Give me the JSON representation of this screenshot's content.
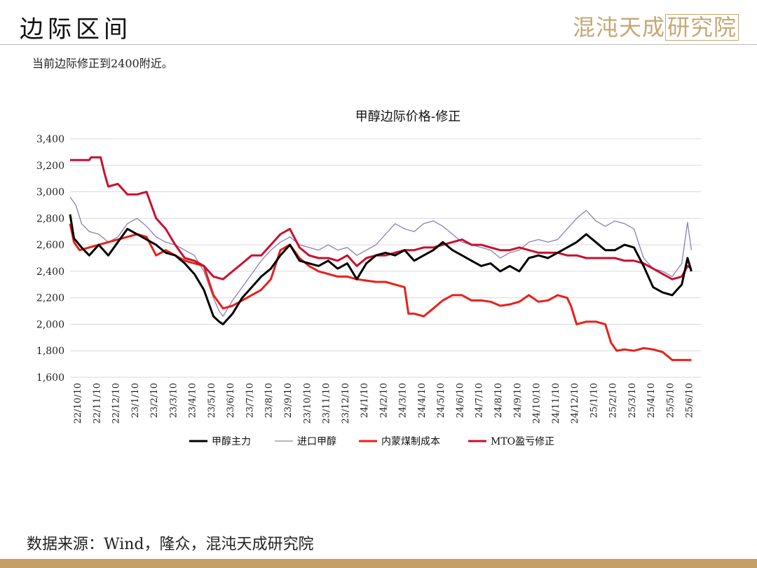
{
  "header": {
    "title": "边际区间",
    "subtitle": "当前边际修正到2400附近。",
    "logo_main": "混沌天成",
    "logo_box": "研究院",
    "source": "数据来源：Wind，隆众，混沌天成研究院"
  },
  "colors": {
    "accent_gold": "#c4a067",
    "series_black": "#000000",
    "series_purple": "#8a7fb5",
    "series_red": "#e8201a",
    "series_darkred": "#c8102e"
  },
  "chart_data": {
    "type": "line",
    "title": "甲醇边际价格-修正",
    "xlabel": "",
    "ylabel": "",
    "ylim": [
      1600,
      3400
    ],
    "yticks": [
      1600,
      1800,
      2000,
      2200,
      2400,
      2600,
      2800,
      3000,
      3200,
      3400
    ],
    "ytick_labels": [
      "1,600",
      "1,800",
      "2,000",
      "2,200",
      "2,400",
      "2,600",
      "2,800",
      "3,000",
      "3,200",
      "3,400"
    ],
    "grid": "horizontal",
    "legend_position": "bottom",
    "xtick_labels": [
      "22/10/10",
      "22/11/10",
      "22/12/10",
      "23/1/10",
      "23/2/10",
      "23/3/10",
      "23/4/10",
      "23/5/10",
      "23/6/10",
      "23/7/10",
      "23/8/10",
      "23/9/10",
      "23/10/10",
      "23/11/10",
      "23/12/10",
      "24/1/10",
      "24/2/10",
      "24/3/10",
      "24/4/10",
      "24/5/10",
      "24/6/10",
      "24/7/10",
      "24/8/10",
      "24/9/10",
      "24/10/10",
      "24/11/10",
      "24/12/10",
      "25/1/10",
      "25/2/10",
      "25/3/10",
      "25/4/10",
      "25/5/10",
      "25/6/10"
    ],
    "x_unit": "month index from 22/10/10",
    "series": [
      {
        "name": "甲醇主力",
        "style": "thick",
        "points": [
          [
            0,
            2830
          ],
          [
            0.2,
            2650
          ],
          [
            0.6,
            2580
          ],
          [
            1,
            2520
          ],
          [
            1.5,
            2600
          ],
          [
            2,
            2520
          ],
          [
            2.5,
            2620
          ],
          [
            3,
            2720
          ],
          [
            3.5,
            2680
          ],
          [
            4,
            2640
          ],
          [
            4.5,
            2600
          ],
          [
            5,
            2540
          ],
          [
            5.5,
            2520
          ],
          [
            6,
            2460
          ],
          [
            6.5,
            2380
          ],
          [
            7,
            2260
          ],
          [
            7.5,
            2060
          ],
          [
            7.8,
            2020
          ],
          [
            8,
            2000
          ],
          [
            8.5,
            2080
          ],
          [
            9,
            2200
          ],
          [
            9.5,
            2280
          ],
          [
            10,
            2360
          ],
          [
            10.5,
            2420
          ],
          [
            11,
            2520
          ],
          [
            11.5,
            2600
          ],
          [
            12,
            2480
          ],
          [
            12.5,
            2460
          ],
          [
            13,
            2440
          ],
          [
            13.5,
            2480
          ],
          [
            14,
            2420
          ],
          [
            14.5,
            2460
          ],
          [
            15,
            2340
          ],
          [
            15.5,
            2460
          ],
          [
            16,
            2520
          ],
          [
            16.5,
            2540
          ],
          [
            17,
            2520
          ],
          [
            17.5,
            2560
          ],
          [
            18,
            2480
          ],
          [
            18.5,
            2520
          ],
          [
            19,
            2560
          ],
          [
            19.5,
            2620
          ],
          [
            20,
            2560
          ],
          [
            20.5,
            2520
          ],
          [
            21,
            2480
          ],
          [
            21.5,
            2440
          ],
          [
            22,
            2460
          ],
          [
            22.5,
            2400
          ],
          [
            23,
            2440
          ],
          [
            23.5,
            2400
          ],
          [
            24,
            2500
          ],
          [
            24.5,
            2520
          ],
          [
            25,
            2500
          ],
          [
            25.5,
            2540
          ],
          [
            26,
            2580
          ],
          [
            26.5,
            2620
          ],
          [
            27,
            2680
          ],
          [
            27.5,
            2620
          ],
          [
            28,
            2560
          ],
          [
            28.5,
            2560
          ],
          [
            29,
            2600
          ],
          [
            29.5,
            2580
          ],
          [
            30,
            2440
          ],
          [
            30.5,
            2280
          ],
          [
            31,
            2240
          ],
          [
            31.5,
            2220
          ],
          [
            32,
            2300
          ],
          [
            32.3,
            2500
          ],
          [
            32.5,
            2400
          ]
        ]
      },
      {
        "name": "进口甲醇",
        "style": "thin",
        "points": [
          [
            0,
            2960
          ],
          [
            0.3,
            2900
          ],
          [
            0.6,
            2760
          ],
          [
            1,
            2700
          ],
          [
            1.5,
            2680
          ],
          [
            2,
            2620
          ],
          [
            2.5,
            2660
          ],
          [
            3,
            2760
          ],
          [
            3.5,
            2800
          ],
          [
            4,
            2740
          ],
          [
            4.5,
            2660
          ],
          [
            5,
            2620
          ],
          [
            5.5,
            2600
          ],
          [
            6,
            2560
          ],
          [
            6.5,
            2520
          ],
          [
            7,
            2400
          ],
          [
            7.5,
            2200
          ],
          [
            7.8,
            2100
          ],
          [
            8,
            2060
          ],
          [
            8.5,
            2180
          ],
          [
            9,
            2280
          ],
          [
            9.5,
            2380
          ],
          [
            10,
            2480
          ],
          [
            10.5,
            2560
          ],
          [
            11,
            2620
          ],
          [
            11.5,
            2660
          ],
          [
            12,
            2600
          ],
          [
            12.5,
            2580
          ],
          [
            13,
            2560
          ],
          [
            13.5,
            2600
          ],
          [
            14,
            2560
          ],
          [
            14.5,
            2580
          ],
          [
            15,
            2520
          ],
          [
            15.5,
            2560
          ],
          [
            16,
            2600
          ],
          [
            16.5,
            2680
          ],
          [
            17,
            2760
          ],
          [
            17.5,
            2720
          ],
          [
            18,
            2700
          ],
          [
            18.5,
            2760
          ],
          [
            19,
            2780
          ],
          [
            19.5,
            2740
          ],
          [
            20,
            2680
          ],
          [
            20.5,
            2620
          ],
          [
            21,
            2600
          ],
          [
            21.5,
            2580
          ],
          [
            22,
            2560
          ],
          [
            22.5,
            2500
          ],
          [
            23,
            2540
          ],
          [
            23.5,
            2560
          ],
          [
            24,
            2620
          ],
          [
            24.5,
            2640
          ],
          [
            25,
            2620
          ],
          [
            25.5,
            2640
          ],
          [
            26,
            2720
          ],
          [
            26.5,
            2800
          ],
          [
            27,
            2860
          ],
          [
            27.5,
            2780
          ],
          [
            28,
            2740
          ],
          [
            28.5,
            2780
          ],
          [
            29,
            2760
          ],
          [
            29.5,
            2720
          ],
          [
            30,
            2500
          ],
          [
            30.5,
            2420
          ],
          [
            31,
            2400
          ],
          [
            31.5,
            2360
          ],
          [
            32,
            2460
          ],
          [
            32.3,
            2770
          ],
          [
            32.5,
            2560
          ]
        ]
      },
      {
        "name": "内蒙煤制成本",
        "style": "thick",
        "points": [
          [
            0,
            2760
          ],
          [
            0.2,
            2620
          ],
          [
            0.5,
            2560
          ],
          [
            1,
            2580
          ],
          [
            1.5,
            2600
          ],
          [
            2,
            2620
          ],
          [
            2.5,
            2640
          ],
          [
            3,
            2660
          ],
          [
            3.5,
            2680
          ],
          [
            4,
            2660
          ],
          [
            4.5,
            2520
          ],
          [
            5,
            2560
          ],
          [
            5.5,
            2520
          ],
          [
            6,
            2480
          ],
          [
            6.5,
            2460
          ],
          [
            7,
            2440
          ],
          [
            7.5,
            2220
          ],
          [
            7.8,
            2160
          ],
          [
            8,
            2120
          ],
          [
            8.5,
            2140
          ],
          [
            9,
            2180
          ],
          [
            9.5,
            2220
          ],
          [
            10,
            2260
          ],
          [
            10.5,
            2340
          ],
          [
            11,
            2560
          ],
          [
            11.5,
            2600
          ],
          [
            12,
            2500
          ],
          [
            12.5,
            2440
          ],
          [
            13,
            2400
          ],
          [
            13.5,
            2380
          ],
          [
            14,
            2360
          ],
          [
            14.5,
            2360
          ],
          [
            15,
            2340
          ],
          [
            15.5,
            2330
          ],
          [
            16,
            2320
          ],
          [
            16.5,
            2320
          ],
          [
            17,
            2300
          ],
          [
            17.5,
            2280
          ],
          [
            17.7,
            2080
          ],
          [
            18,
            2080
          ],
          [
            18.5,
            2060
          ],
          [
            19,
            2120
          ],
          [
            19.5,
            2180
          ],
          [
            20,
            2220
          ],
          [
            20.5,
            2220
          ],
          [
            21,
            2180
          ],
          [
            21.5,
            2180
          ],
          [
            22,
            2170
          ],
          [
            22.5,
            2140
          ],
          [
            23,
            2150
          ],
          [
            23.5,
            2170
          ],
          [
            24,
            2220
          ],
          [
            24.5,
            2170
          ],
          [
            25,
            2180
          ],
          [
            25.5,
            2220
          ],
          [
            26,
            2200
          ],
          [
            26.2,
            2140
          ],
          [
            26.5,
            2000
          ],
          [
            27,
            2020
          ],
          [
            27.5,
            2020
          ],
          [
            28,
            2000
          ],
          [
            28.3,
            1860
          ],
          [
            28.6,
            1800
          ],
          [
            29,
            1810
          ],
          [
            29.5,
            1800
          ],
          [
            30,
            1820
          ],
          [
            30.5,
            1810
          ],
          [
            31,
            1790
          ],
          [
            31.5,
            1730
          ],
          [
            32,
            1730
          ],
          [
            32.5,
            1730
          ]
        ]
      },
      {
        "name": "MTO盈亏修正",
        "style": "thick",
        "points": [
          [
            0,
            3240
          ],
          [
            0.5,
            3240
          ],
          [
            1,
            3240
          ],
          [
            1.1,
            3260
          ],
          [
            1.6,
            3260
          ],
          [
            1.8,
            3140
          ],
          [
            2,
            3040
          ],
          [
            2.5,
            3060
          ],
          [
            3,
            2980
          ],
          [
            3.5,
            2980
          ],
          [
            4,
            3000
          ],
          [
            4.5,
            2800
          ],
          [
            5,
            2720
          ],
          [
            5.5,
            2600
          ],
          [
            6,
            2500
          ],
          [
            6.5,
            2480
          ],
          [
            7,
            2440
          ],
          [
            7.5,
            2360
          ],
          [
            8,
            2340
          ],
          [
            8.5,
            2400
          ],
          [
            9,
            2460
          ],
          [
            9.5,
            2520
          ],
          [
            10,
            2520
          ],
          [
            10.5,
            2600
          ],
          [
            11,
            2680
          ],
          [
            11.5,
            2720
          ],
          [
            12,
            2580
          ],
          [
            12.5,
            2520
          ],
          [
            13,
            2500
          ],
          [
            13.5,
            2500
          ],
          [
            14,
            2480
          ],
          [
            14.5,
            2520
          ],
          [
            15,
            2440
          ],
          [
            15.5,
            2500
          ],
          [
            16,
            2520
          ],
          [
            16.5,
            2520
          ],
          [
            17,
            2540
          ],
          [
            17.5,
            2560
          ],
          [
            18,
            2560
          ],
          [
            18.5,
            2580
          ],
          [
            19,
            2580
          ],
          [
            19.5,
            2600
          ],
          [
            20,
            2620
          ],
          [
            20.5,
            2640
          ],
          [
            21,
            2600
          ],
          [
            21.5,
            2600
          ],
          [
            22,
            2580
          ],
          [
            22.5,
            2560
          ],
          [
            23,
            2560
          ],
          [
            23.5,
            2580
          ],
          [
            24,
            2560
          ],
          [
            24.5,
            2540
          ],
          [
            25,
            2540
          ],
          [
            25.5,
            2540
          ],
          [
            26,
            2520
          ],
          [
            26.5,
            2520
          ],
          [
            27,
            2500
          ],
          [
            27.5,
            2500
          ],
          [
            28,
            2500
          ],
          [
            28.5,
            2500
          ],
          [
            29,
            2480
          ],
          [
            29.5,
            2480
          ],
          [
            30,
            2460
          ],
          [
            30.5,
            2420
          ],
          [
            31,
            2380
          ],
          [
            31.5,
            2340
          ],
          [
            32,
            2360
          ],
          [
            32.3,
            2440
          ],
          [
            32.5,
            2420
          ]
        ]
      }
    ]
  }
}
